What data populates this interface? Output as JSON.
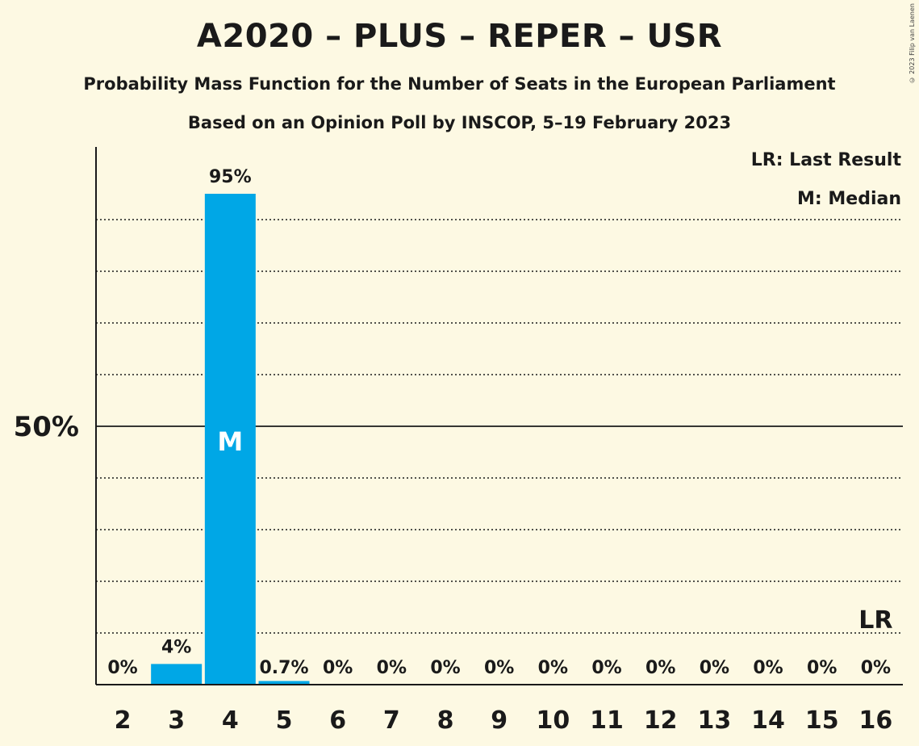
{
  "chart_data": {
    "type": "bar",
    "title": "A2020 – PLUS – REPER – USR",
    "subtitle": "Probability Mass Function for the Number of Seats in the European Parliament",
    "subtitle2": "Based on an Opinion Poll by INSCOP, 5–19 February 2023",
    "copyright": "© 2023 Filip van Laenen",
    "categories": [
      "2",
      "3",
      "4",
      "5",
      "6",
      "7",
      "8",
      "9",
      "10",
      "11",
      "12",
      "13",
      "14",
      "15",
      "16"
    ],
    "values": [
      0,
      4,
      95,
      0.7,
      0,
      0,
      0,
      0,
      0,
      0,
      0,
      0,
      0,
      0,
      0
    ],
    "value_labels": [
      "0%",
      "4%",
      "95%",
      "0.7%",
      "0%",
      "0%",
      "0%",
      "0%",
      "0%",
      "0%",
      "0%",
      "0%",
      "0%",
      "0%",
      "0%"
    ],
    "ylim": [
      0,
      100
    ],
    "ytick_label": "50%",
    "ytick_value": 50,
    "gridlines": [
      10,
      20,
      30,
      40,
      60,
      70,
      80,
      90
    ],
    "median_category": "4",
    "median_marker": "M",
    "last_result_category": "16",
    "last_result_marker": "LR",
    "legend": {
      "lr": "LR: Last Result",
      "m": "M: Median",
      "position": "top-right"
    },
    "colors": {
      "bar": "#00a7e6",
      "background": "#fdf9e3",
      "text": "#1a1a1a"
    }
  }
}
